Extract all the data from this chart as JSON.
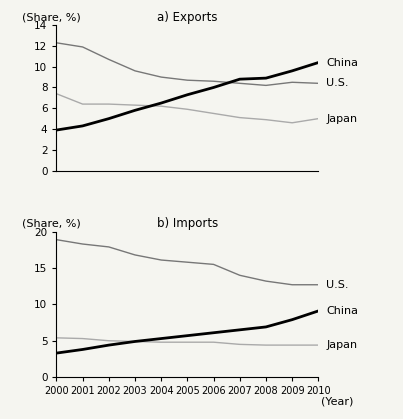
{
  "years": [
    2000,
    2001,
    2002,
    2003,
    2004,
    2005,
    2006,
    2007,
    2008,
    2009,
    2010
  ],
  "exports": {
    "China": [
      3.9,
      4.3,
      5.0,
      5.8,
      6.5,
      7.3,
      8.0,
      8.8,
      8.9,
      9.6,
      10.4
    ],
    "US": [
      12.3,
      11.9,
      10.7,
      9.6,
      9.0,
      8.7,
      8.6,
      8.4,
      8.2,
      8.5,
      8.4
    ],
    "Japan": [
      7.4,
      6.4,
      6.4,
      6.3,
      6.2,
      5.9,
      5.5,
      5.1,
      4.9,
      4.6,
      5.0
    ]
  },
  "imports": {
    "US": [
      18.9,
      18.3,
      17.9,
      16.8,
      16.1,
      15.8,
      15.5,
      14.0,
      13.2,
      12.7,
      12.7
    ],
    "China": [
      3.3,
      3.8,
      4.4,
      4.9,
      5.3,
      5.7,
      6.1,
      6.5,
      6.9,
      7.9,
      9.1
    ],
    "Japan": [
      5.4,
      5.3,
      5.0,
      4.9,
      4.8,
      4.8,
      4.8,
      4.5,
      4.4,
      4.4,
      4.4
    ]
  },
  "export_ylim": [
    0,
    14
  ],
  "export_yticks": [
    0,
    2,
    4,
    6,
    8,
    10,
    12,
    14
  ],
  "import_ylim": [
    0,
    20
  ],
  "import_yticks": [
    0,
    5,
    10,
    15,
    20
  ],
  "color_china": "#000000",
  "color_us": "#777777",
  "color_japan": "#aaaaaa",
  "lw_china": 2.0,
  "lw_us": 1.0,
  "lw_japan": 1.0,
  "title_a": "a) Exports",
  "title_b": "b) Imports",
  "ylabel": "(Share, %)",
  "xlabel": "(Year)",
  "label_china": "China",
  "label_us": "U.S.",
  "label_japan": "Japan",
  "bg_color": "#f5f5f0"
}
